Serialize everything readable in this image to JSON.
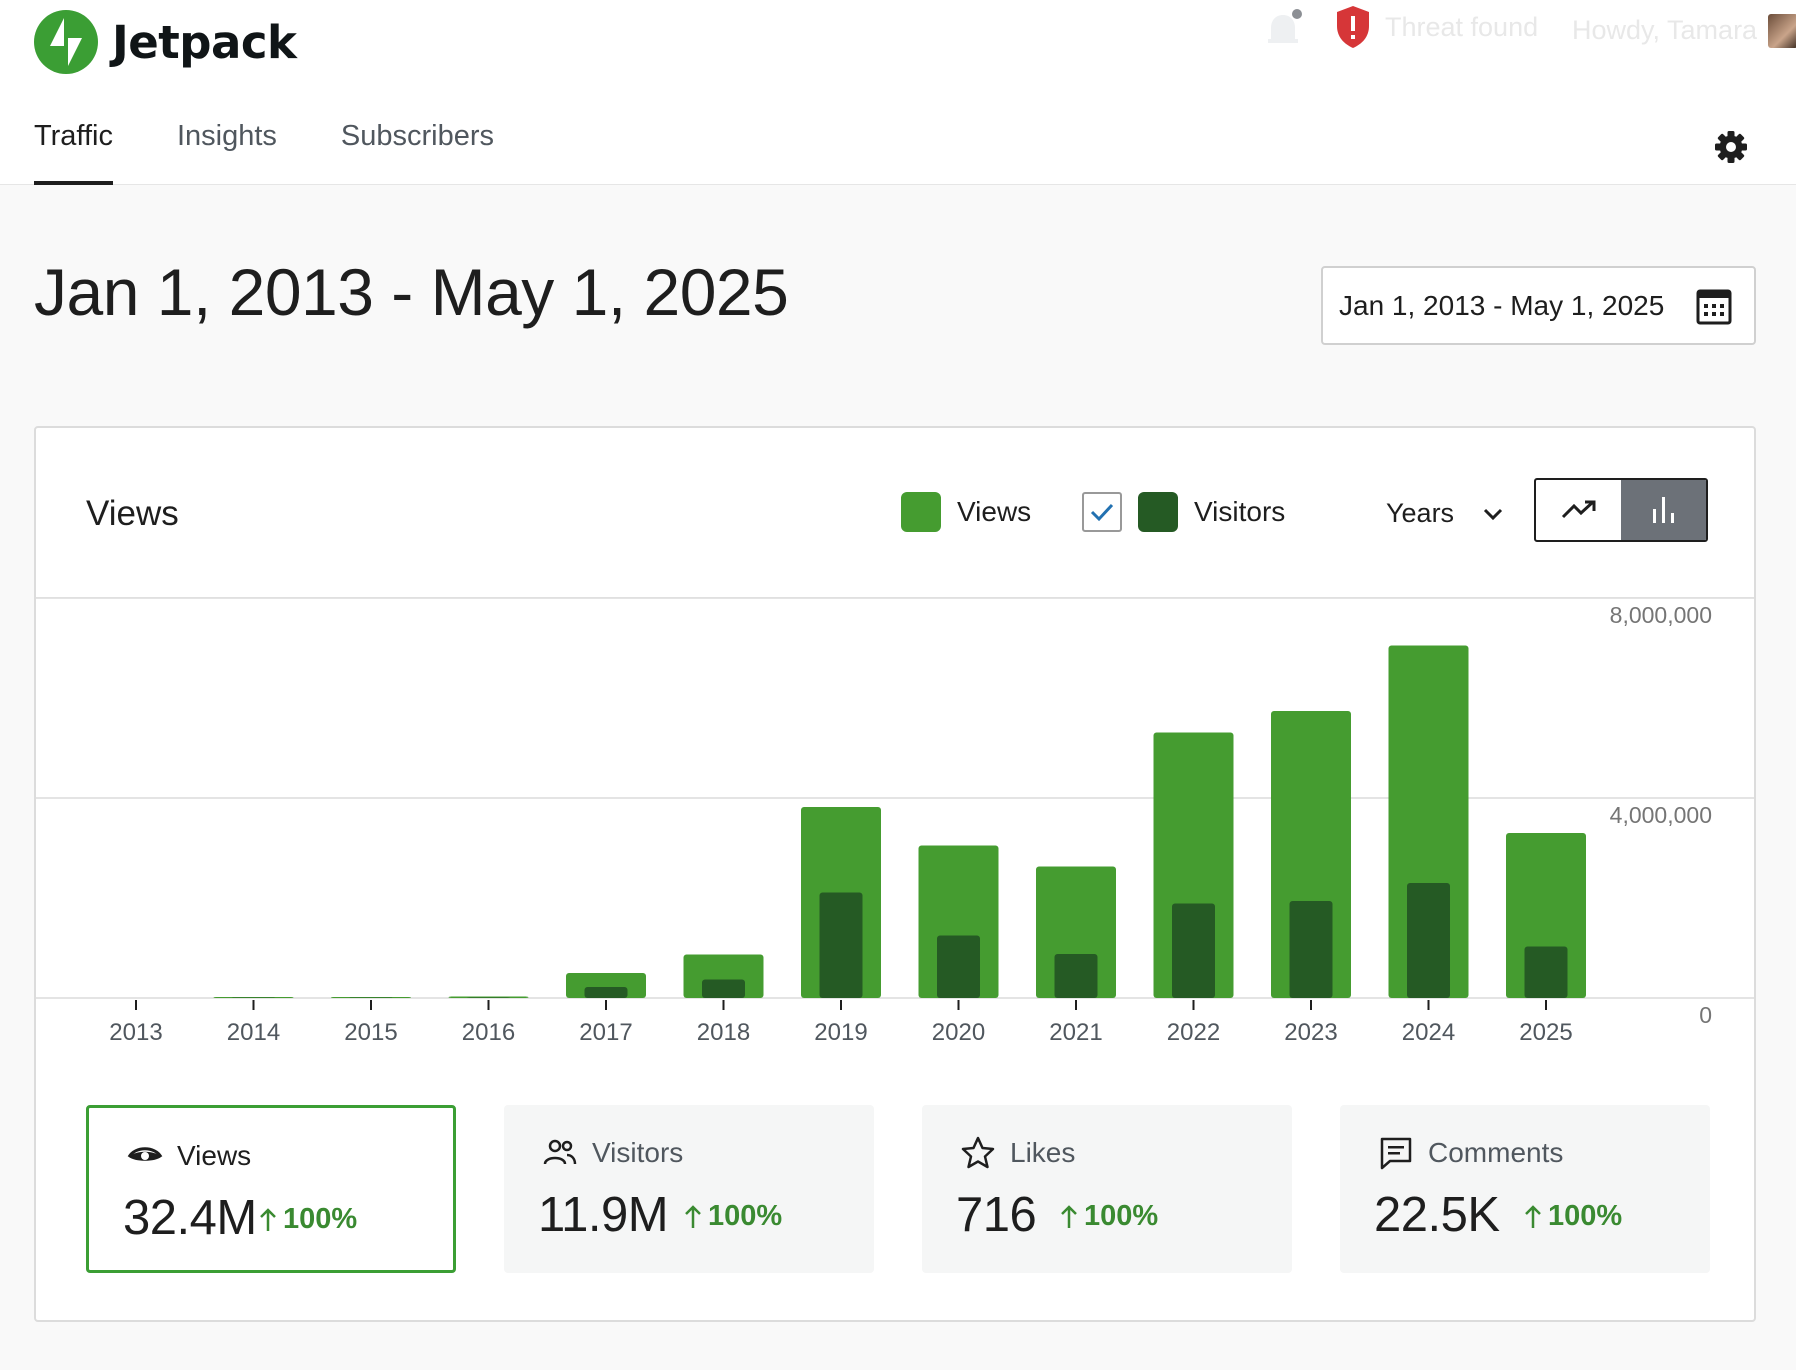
{
  "brand": {
    "name": "Jetpack",
    "accent": "#3b9e34"
  },
  "topbar": {
    "threat_label": "Threat found",
    "greeting": "Howdy, Tamara"
  },
  "tabs": [
    {
      "label": "Traffic",
      "active": true
    },
    {
      "label": "Insights",
      "active": false
    },
    {
      "label": "Subscribers",
      "active": false
    }
  ],
  "page": {
    "title": "Jan 1, 2013 - May 1, 2025",
    "date_range_label": "Jan 1, 2013 - May 1, 2025"
  },
  "card": {
    "title": "Views",
    "legend": {
      "views": "Views",
      "visitors": "Visitors",
      "visitors_checked": true
    },
    "period": "Years",
    "chart_mode": "bar"
  },
  "chart_data": {
    "type": "bar",
    "categories": [
      "2013",
      "2014",
      "2015",
      "2016",
      "2017",
      "2018",
      "2019",
      "2020",
      "2021",
      "2022",
      "2023",
      "2024",
      "2025"
    ],
    "series": [
      {
        "name": "Views",
        "color": "#459c30",
        "values": [
          0,
          20000,
          20000,
          30000,
          500000,
          870000,
          3820000,
          3050000,
          2630000,
          5310000,
          5740000,
          7050000,
          3300000
        ]
      },
      {
        "name": "Visitors",
        "color": "#255a24",
        "values": [
          0,
          8000,
          8000,
          10000,
          220000,
          370000,
          2110000,
          1250000,
          880000,
          1890000,
          1940000,
          2300000,
          1030000
        ]
      }
    ],
    "y_ticks": [
      "8,000,000",
      "4,000,000",
      "0"
    ],
    "ylim": [
      0,
      8000000
    ],
    "grid": true
  },
  "stats": [
    {
      "label": "Views",
      "value": "32.4M",
      "delta": "100%",
      "icon": "eye-icon",
      "selected": true
    },
    {
      "label": "Visitors",
      "value": "11.9M",
      "delta": "100%",
      "icon": "people-icon",
      "selected": false
    },
    {
      "label": "Likes",
      "value": "716",
      "delta": "100%",
      "icon": "star-icon",
      "selected": false
    },
    {
      "label": "Comments",
      "value": "22.5K",
      "delta": "100%",
      "icon": "comment-icon",
      "selected": false
    }
  ]
}
